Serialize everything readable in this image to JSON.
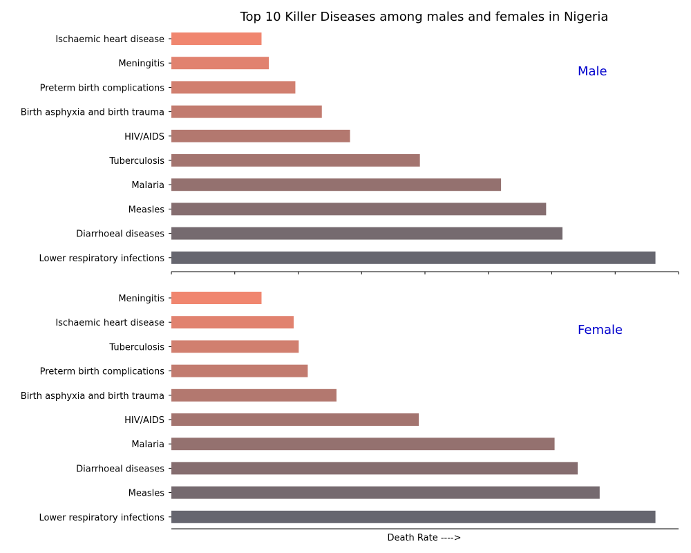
{
  "chart_data": {
    "type": "bar",
    "orientation": "horizontal",
    "title": "Top 10 Killer Diseases among males and females in Nigeria",
    "xlabel": "Death Rate ---->",
    "xlim": [
      0,
      9000
    ],
    "shared_x_axis": true,
    "x_tick_labels_shown": false,
    "grid": false,
    "color_ramp": [
      "#f0866f",
      "#66666f"
    ],
    "panels": [
      {
        "label": "Male",
        "label_color": "#0000cd",
        "categories": [
          "Ischaemic heart disease",
          "Meningitis",
          "Preterm birth complications",
          "Birth asphyxia and birth trauma",
          "HIV/AIDS",
          "Tuberculosis",
          "Malaria",
          "Measles",
          "Diarrhoeal diseases",
          "Lower respiratory infections"
        ],
        "values": [
          1600,
          1730,
          2200,
          2670,
          3170,
          4410,
          5850,
          6650,
          6940,
          8590
        ]
      },
      {
        "label": "Female",
        "label_color": "#0000cd",
        "categories": [
          "Meningitis",
          "Ischaemic heart disease",
          "Tuberculosis",
          "Preterm birth complications",
          "Birth asphyxia and birth trauma",
          "HIV/AIDS",
          "Malaria",
          "Diarrhoeal diseases",
          "Measles",
          "Lower respiratory infections"
        ],
        "values": [
          1600,
          2170,
          2260,
          2420,
          2930,
          4390,
          6800,
          7210,
          7600,
          8590
        ]
      }
    ]
  }
}
